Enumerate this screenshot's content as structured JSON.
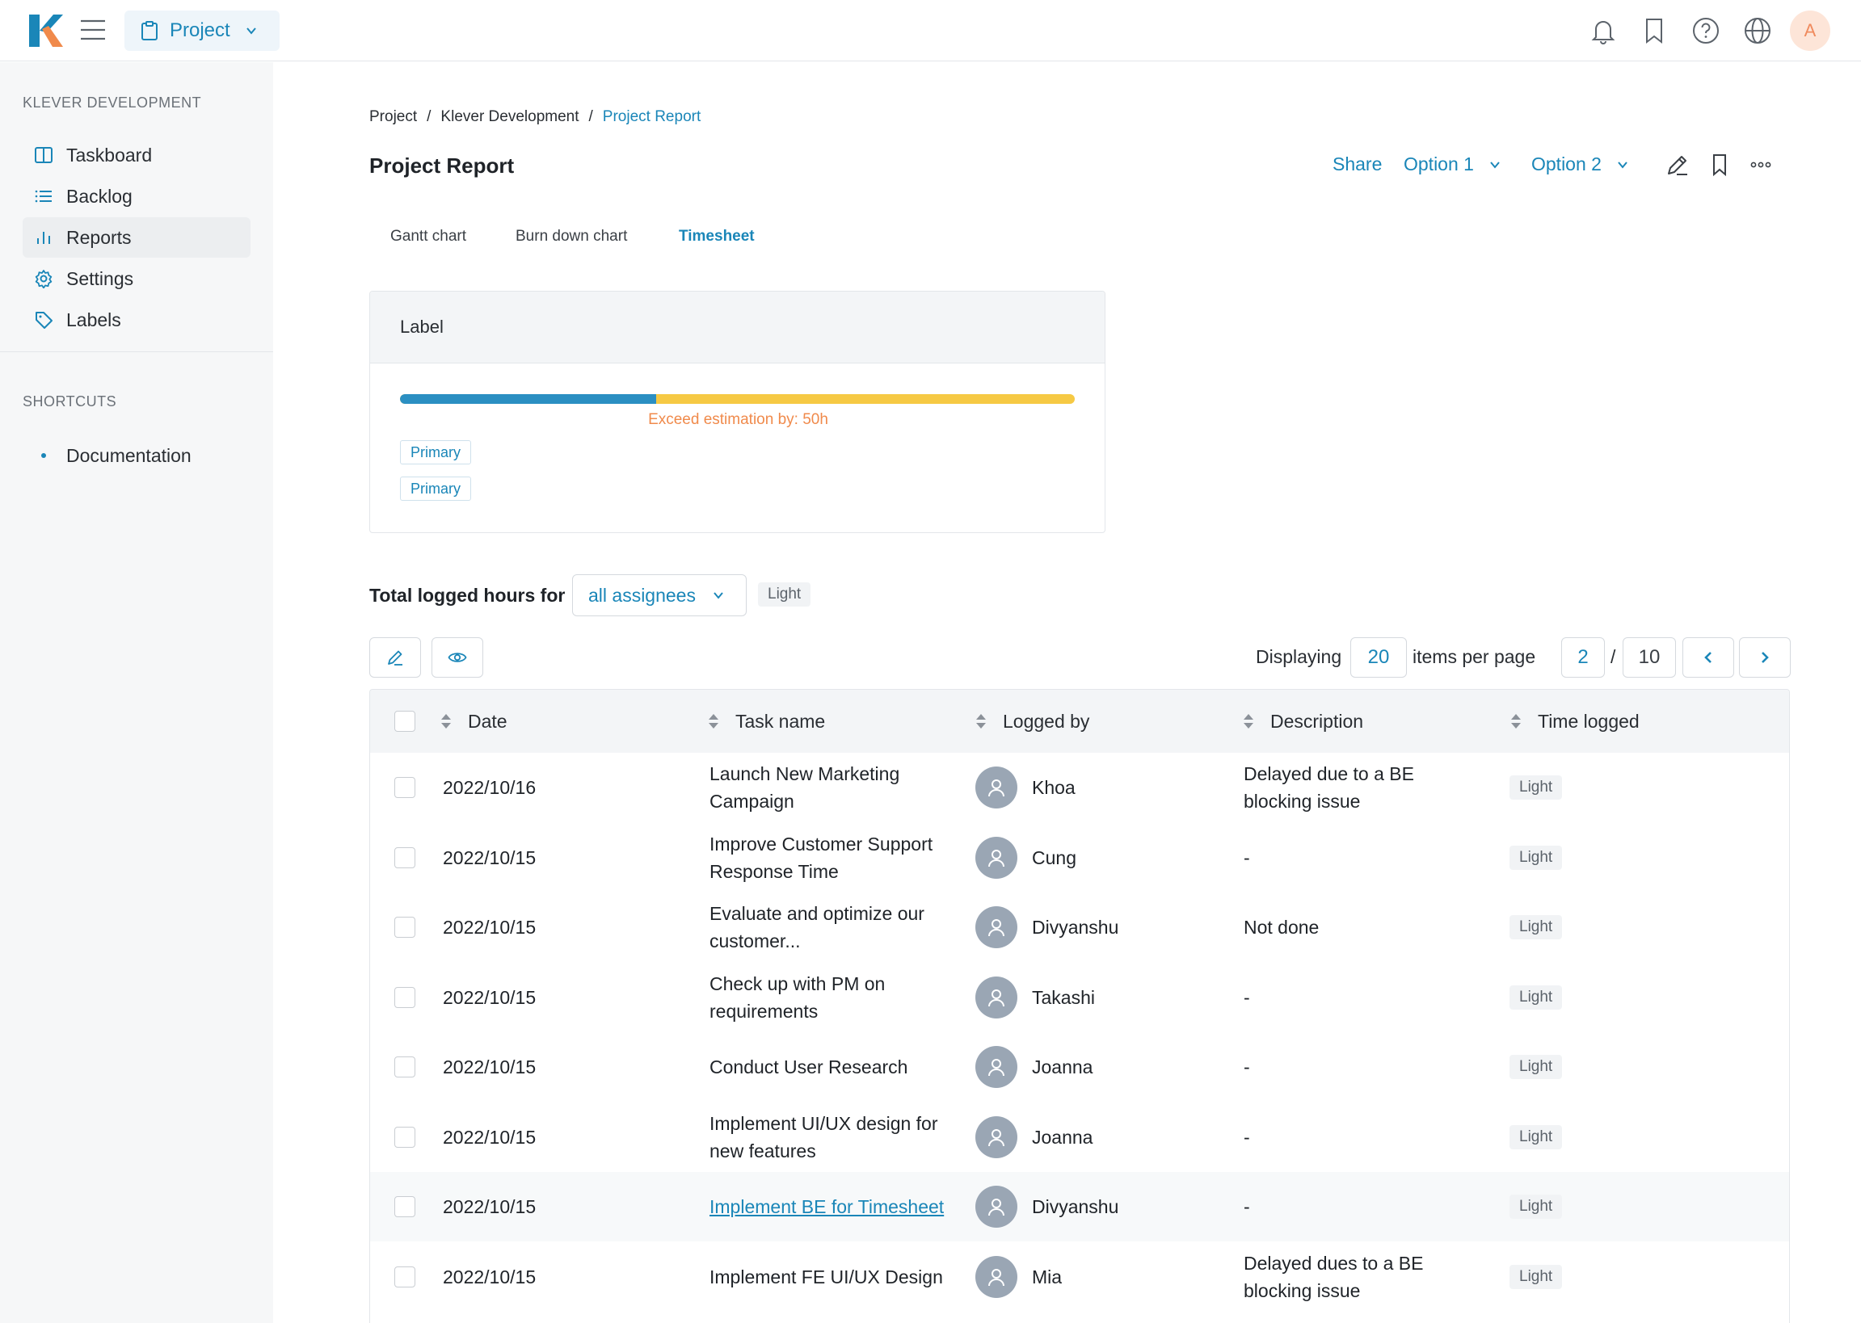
{
  "topbar": {
    "project_label": "Project",
    "avatar_initial": "A"
  },
  "sidebar": {
    "section_title": "KLEVER DEVELOPMENT",
    "items": [
      {
        "label": "Taskboard",
        "icon": "columns-icon"
      },
      {
        "label": "Backlog",
        "icon": "list-icon"
      },
      {
        "label": "Reports",
        "icon": "bar-chart-icon"
      },
      {
        "label": "Settings",
        "icon": "gear-icon"
      },
      {
        "label": "Labels",
        "icon": "tag-icon"
      }
    ],
    "shortcuts_title": "SHORTCUTS",
    "shortcuts": [
      {
        "label": "Documentation"
      }
    ]
  },
  "breadcrumb": {
    "items": [
      "Project",
      "Klever Development",
      "Project Report"
    ],
    "separator": "/"
  },
  "page": {
    "title": "Project Report",
    "share": "Share",
    "option1": "Option 1",
    "option2": "Option 2"
  },
  "tabs": [
    {
      "label": "Gantt chart"
    },
    {
      "label": "Burn down chart"
    },
    {
      "label": "Timesheet"
    }
  ],
  "card": {
    "label": "Label",
    "progress_fraction": 0.38,
    "exceed_text": "Exceed estimation by: 50h",
    "tags": [
      "Primary",
      "Primary"
    ]
  },
  "filter": {
    "label": "Total logged hours for",
    "assignee": "all assignees",
    "badge": "Light"
  },
  "pager": {
    "displaying": "Displaying",
    "per_page": "20",
    "items_per_page": "items per page",
    "current_page": "2",
    "separator": "/",
    "total_pages": "10"
  },
  "table": {
    "columns": [
      "Date",
      "Task name",
      "Logged by",
      "Description",
      "Time logged"
    ],
    "rows": [
      {
        "date": "2022/10/16",
        "task": [
          "Launch New Marketing",
          "Campaign"
        ],
        "user": "Khoa",
        "desc": [
          "Delayed due to a BE",
          "blocking issue"
        ],
        "time": "Light"
      },
      {
        "date": "2022/10/15",
        "task": [
          "Improve Customer Support",
          "Response Time"
        ],
        "user": "Cung",
        "desc": [
          "-"
        ],
        "time": "Light"
      },
      {
        "date": "2022/10/15",
        "task": [
          "Evaluate and optimize our",
          "customer..."
        ],
        "user": "Divyanshu",
        "desc": [
          "Not done"
        ],
        "time": "Light"
      },
      {
        "date": "2022/10/15",
        "task": [
          "Check up with PM on",
          "requirements"
        ],
        "user": "Takashi",
        "desc": [
          "-"
        ],
        "time": "Light"
      },
      {
        "date": "2022/10/15",
        "task": [
          "Conduct User Research"
        ],
        "user": "Joanna",
        "desc": [
          "-"
        ],
        "time": "Light"
      },
      {
        "date": "2022/10/15",
        "task": [
          "Implement UI/UX design for",
          "new features"
        ],
        "user": "Joanna",
        "desc": [
          "-"
        ],
        "time": "Light"
      },
      {
        "date": "2022/10/15",
        "task": [
          "Implement BE for Timesheet"
        ],
        "user": "Divyanshu",
        "desc": [
          "-"
        ],
        "time": "Light",
        "link": true
      },
      {
        "date": "2022/10/15",
        "task": [
          "Implement FE UI/UX Design"
        ],
        "user": "Mia",
        "desc": [
          "Delayed dues to a BE",
          "blocking issue"
        ],
        "time": "Light"
      }
    ]
  },
  "colors": {
    "accent": "#1a86b8",
    "progress_blue": "#2b8fc2",
    "progress_yellow": "#f6c944",
    "warning": "#f08a4b"
  }
}
